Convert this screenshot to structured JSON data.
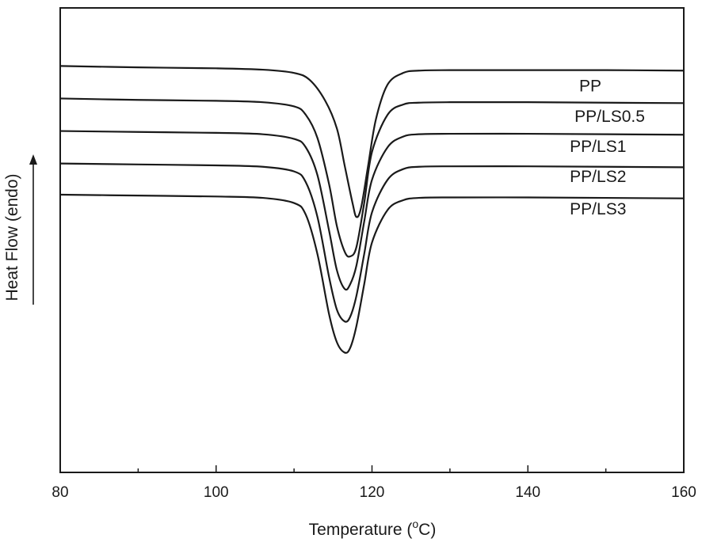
{
  "chart_data": {
    "type": "line",
    "title": "",
    "xlabel": "Temperature (",
    "xlabel_sup": "o",
    "xlabel_unit": "C)",
    "ylabel": "Heat Flow (endo)",
    "ylabel_arrow": true,
    "xlim": [
      80,
      160
    ],
    "ylim": [
      0,
      100
    ],
    "x_ticks": [
      80,
      100,
      120,
      140,
      160
    ],
    "x_tick_labels": [
      "80",
      "100",
      "120",
      "140",
      "160"
    ],
    "x_minor_step": 10,
    "y_tick_labels_shown": false,
    "grid": false,
    "legend": "inline-labels-right",
    "series": [
      {
        "name": "PP",
        "label_x": 148,
        "label_y": 82,
        "x": [
          80,
          90,
          100,
          106,
          110,
          112,
          114,
          115.5,
          116.5,
          117.5,
          118,
          118.6,
          119.5,
          120.5,
          122,
          124,
          126,
          130,
          140,
          150,
          160
        ],
        "y": [
          87.5,
          87.2,
          87.0,
          86.7,
          86.0,
          84.5,
          80.0,
          74.0,
          66.0,
          58.0,
          55.0,
          57.0,
          66.0,
          76.0,
          83.5,
          86.0,
          86.5,
          86.6,
          86.6,
          86.6,
          86.5
        ]
      },
      {
        "name": "PP/LS0.5",
        "label_x": 150.5,
        "label_y": 75.5,
        "x": [
          80,
          90,
          100,
          106,
          110,
          111.5,
          113,
          114.5,
          115.5,
          116.5,
          117.2,
          118,
          119,
          120,
          122,
          124,
          126,
          130,
          140,
          150,
          160
        ],
        "y": [
          80.5,
          80.2,
          80.0,
          79.7,
          78.8,
          77.0,
          72.0,
          62.0,
          53.0,
          47.5,
          46.5,
          48.5,
          58.0,
          69.0,
          77.0,
          79.2,
          79.6,
          79.7,
          79.7,
          79.6,
          79.5
        ]
      },
      {
        "name": "PP/LS1",
        "label_x": 149,
        "label_y": 69,
        "x": [
          80,
          90,
          100,
          106,
          110,
          111.5,
          113,
          114.5,
          115.5,
          116.5,
          117.2,
          118,
          119,
          120,
          122,
          124,
          126,
          130,
          140,
          150,
          160
        ],
        "y": [
          73.5,
          73.3,
          73.1,
          72.8,
          71.8,
          70.0,
          64.0,
          52.0,
          43.5,
          39.5,
          40.5,
          44.5,
          54.0,
          63.0,
          70.0,
          72.3,
          72.8,
          72.9,
          72.9,
          72.8,
          72.7
        ]
      },
      {
        "name": "PP/LS2",
        "label_x": 149,
        "label_y": 62.5,
        "x": [
          80,
          90,
          100,
          106,
          110,
          111.5,
          113,
          114.5,
          115.5,
          116.5,
          117.2,
          118,
          119,
          120,
          122,
          124,
          126,
          130,
          140,
          150,
          160
        ],
        "y": [
          66.5,
          66.3,
          66.1,
          65.8,
          64.8,
          62.5,
          55.0,
          42.0,
          35.0,
          32.5,
          33.5,
          38.0,
          47.0,
          56.0,
          63.0,
          65.3,
          65.8,
          65.9,
          65.9,
          65.8,
          65.7
        ]
      },
      {
        "name": "PP/LS3",
        "label_x": 149,
        "label_y": 55.5,
        "x": [
          80,
          90,
          100,
          106,
          110,
          111.5,
          113,
          114.5,
          115.5,
          116.5,
          117.2,
          118,
          119,
          120,
          122,
          124,
          126,
          130,
          140,
          150,
          160
        ],
        "y": [
          59.8,
          59.6,
          59.4,
          59.1,
          58.0,
          55.5,
          47.0,
          34.0,
          28.0,
          25.8,
          26.8,
          31.5,
          40.5,
          49.5,
          56.5,
          58.6,
          59.1,
          59.2,
          59.2,
          59.1,
          59.0
        ]
      }
    ]
  }
}
